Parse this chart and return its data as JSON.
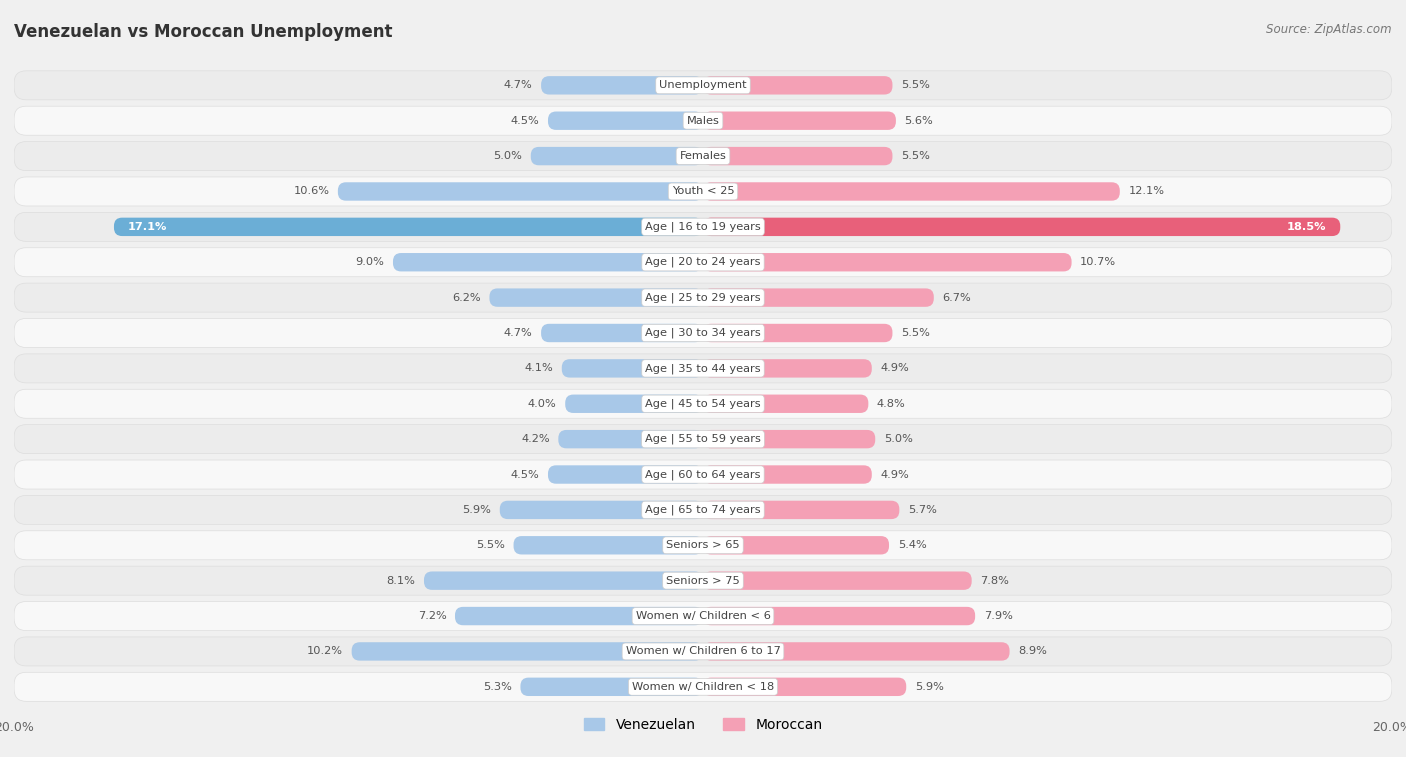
{
  "title": "Venezuelan vs Moroccan Unemployment",
  "source": "Source: ZipAtlas.com",
  "categories": [
    "Unemployment",
    "Males",
    "Females",
    "Youth < 25",
    "Age | 16 to 19 years",
    "Age | 20 to 24 years",
    "Age | 25 to 29 years",
    "Age | 30 to 34 years",
    "Age | 35 to 44 years",
    "Age | 45 to 54 years",
    "Age | 55 to 59 years",
    "Age | 60 to 64 years",
    "Age | 65 to 74 years",
    "Seniors > 65",
    "Seniors > 75",
    "Women w/ Children < 6",
    "Women w/ Children 6 to 17",
    "Women w/ Children < 18"
  ],
  "venezuelan": [
    4.7,
    4.5,
    5.0,
    10.6,
    17.1,
    9.0,
    6.2,
    4.7,
    4.1,
    4.0,
    4.2,
    4.5,
    5.9,
    5.5,
    8.1,
    7.2,
    10.2,
    5.3
  ],
  "moroccan": [
    5.5,
    5.6,
    5.5,
    12.1,
    18.5,
    10.7,
    6.7,
    5.5,
    4.9,
    4.8,
    5.0,
    4.9,
    5.7,
    5.4,
    7.8,
    7.9,
    8.9,
    5.9
  ],
  "venezuelan_color_normal": "#A8C8E8",
  "venezuelan_color_highlight": "#6BAED6",
  "moroccan_color_normal": "#F4A0B5",
  "moroccan_color_highlight": "#E8607A",
  "row_bg_light": "#FFFFFF",
  "row_bg_dark": "#EBEBEB",
  "row_pill_color": "#E8E8E8",
  "bg_color": "#F0F0F0",
  "label_text_color": "#555555",
  "center_label_color": "#444444",
  "max_value": 20.0,
  "bar_height": 0.52,
  "legend_venezuelan": "Venezuelan",
  "legend_moroccan": "Moroccan"
}
